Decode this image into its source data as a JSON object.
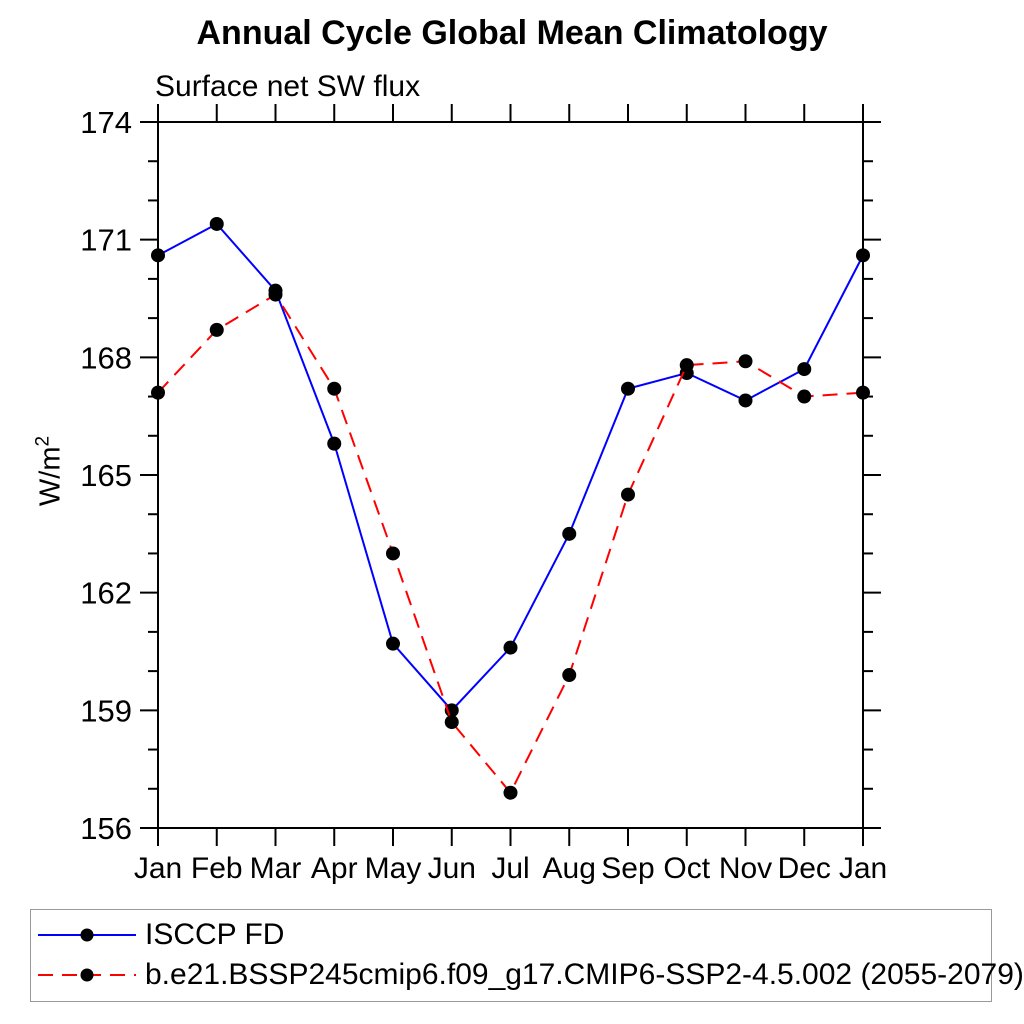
{
  "page": {
    "background": "#ffffff"
  },
  "y_axis": {
    "label_base": "W/m",
    "label_sup": "2"
  },
  "legend": {
    "items": [
      {
        "label": "ISCCP FD"
      },
      {
        "label": "b.e21.BSSP245cmip6.f09_g17.CMIP6-SSP2-4.5.002 (2055-2079)"
      }
    ]
  },
  "chart_data": {
    "type": "line",
    "title": "Annual Cycle Global Mean Climatology",
    "subtitle": "Surface net SW flux",
    "ylabel": "W/m²",
    "xlabel": "",
    "categories": [
      "Jan",
      "Feb",
      "Mar",
      "Apr",
      "May",
      "Jun",
      "Jul",
      "Aug",
      "Sep",
      "Oct",
      "Nov",
      "Dec",
      "Jan"
    ],
    "ylim": [
      156,
      174
    ],
    "yticks_major": [
      156,
      159,
      162,
      165,
      168,
      171,
      174
    ],
    "yticks_minor_step": 1,
    "grid": false,
    "legend_position": "bottom-left-box",
    "axis_color": "#000000",
    "marker_color": "#000000",
    "series": [
      {
        "name": "ISCCP FD",
        "color": "#0000ff",
        "line_style": "solid",
        "marker": "filled-circle",
        "values": [
          170.6,
          171.4,
          169.7,
          165.8,
          160.7,
          159.0,
          160.6,
          163.5,
          167.2,
          167.6,
          166.9,
          167.7,
          170.6
        ]
      },
      {
        "name": "b.e21.BSSP245cmip6.f09_g17.CMIP6-SSP2-4.5.002 (2055-2079)",
        "color": "#ff0000",
        "line_style": "dashed",
        "marker": "filled-circle",
        "values": [
          167.1,
          168.7,
          169.6,
          167.2,
          163.0,
          158.7,
          156.9,
          159.9,
          164.5,
          167.8,
          167.9,
          167.0,
          167.1
        ]
      }
    ]
  }
}
